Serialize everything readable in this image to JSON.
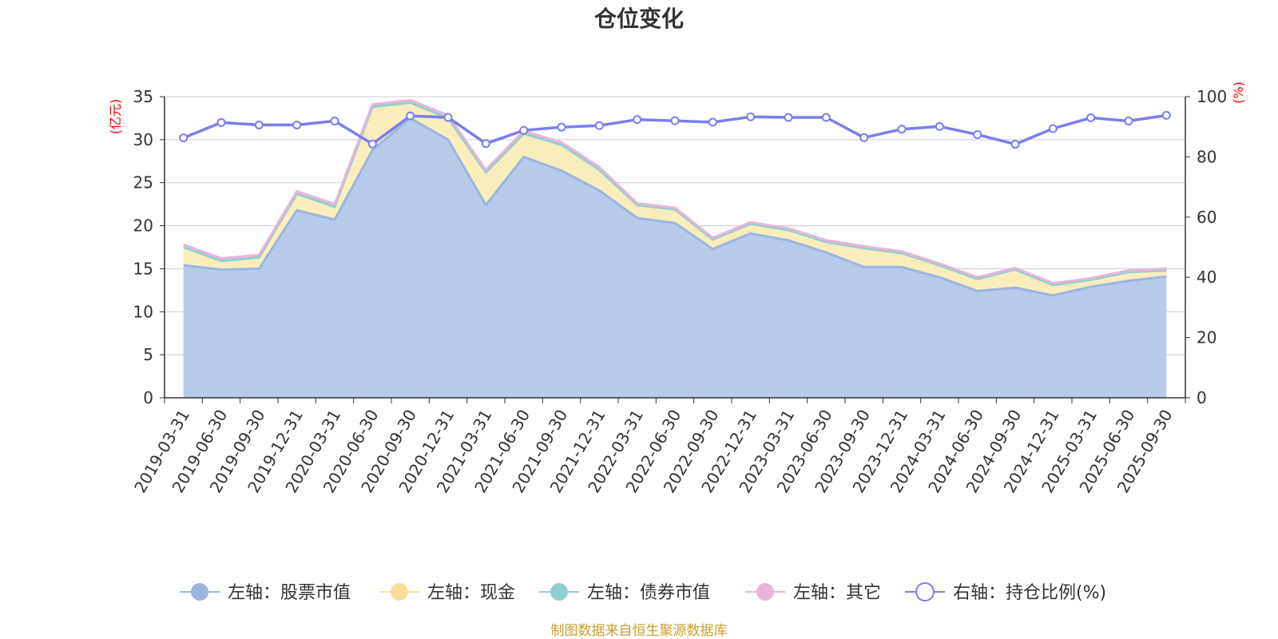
{
  "chart_data": {
    "type": "area",
    "title": "仓位变化",
    "left_axis": {
      "unit": "(亿元)",
      "min": 0,
      "max": 35,
      "ticks": [
        0,
        5,
        10,
        15,
        20,
        25,
        30,
        35
      ]
    },
    "right_axis": {
      "unit": "(%)",
      "min": 0,
      "max": 100,
      "ticks": [
        0,
        20,
        40,
        60,
        80,
        100
      ]
    },
    "categories": [
      "2019-03-31",
      "2019-06-30",
      "2019-09-30",
      "2019-12-31",
      "2020-03-31",
      "2020-06-30",
      "2020-09-30",
      "2020-12-31",
      "2021-03-31",
      "2021-06-30",
      "2021-09-30",
      "2021-12-31",
      "2022-03-31",
      "2022-06-30",
      "2022-09-30",
      "2022-12-31",
      "2023-03-31",
      "2023-06-30",
      "2023-09-30",
      "2023-12-31",
      "2024-03-31",
      "2024-06-30",
      "2024-09-30",
      "2024-12-31",
      "2025-03-31",
      "2025-06-30",
      "2025-09-30"
    ],
    "series": [
      {
        "name": "左轴：股票市值",
        "axis": "left",
        "stack": true,
        "color": "#9bb6e0",
        "fill": "#b8cbea",
        "values": [
          15.4,
          14.9,
          15.0,
          21.8,
          20.7,
          28.8,
          32.5,
          30.0,
          22.4,
          28.0,
          26.4,
          24.1,
          20.9,
          20.3,
          17.3,
          19.1,
          18.3,
          16.9,
          15.2,
          15.2,
          14.0,
          12.4,
          12.8,
          11.9,
          12.9,
          13.6,
          14.1
        ]
      },
      {
        "name": "左轴：现金",
        "axis": "left",
        "stack": true,
        "color": "#f5e09a",
        "fill": "#faeebd",
        "values": [
          2.1,
          1.0,
          1.3,
          1.9,
          1.5,
          5.0,
          1.8,
          2.5,
          3.8,
          2.7,
          3.0,
          2.4,
          1.5,
          1.6,
          1.1,
          1.1,
          1.2,
          1.2,
          2.2,
          1.6,
          1.4,
          1.4,
          2.1,
          1.2,
          0.8,
          1.0,
          0.7
        ]
      },
      {
        "name": "左轴：债券市值",
        "axis": "left",
        "stack": true,
        "color": "#8fd0d2",
        "fill": "#b7e2e3",
        "values": [
          0,
          0,
          0,
          0,
          0,
          0,
          0,
          0,
          0,
          0,
          0,
          0,
          0,
          0,
          0,
          0,
          0,
          0,
          0,
          0,
          0,
          0,
          0,
          0,
          0,
          0,
          0
        ]
      },
      {
        "name": "左轴：其它",
        "axis": "left",
        "stack": true,
        "color": "#e8b4d8",
        "fill": "#f0cde6",
        "values": [
          0.3,
          0.3,
          0.3,
          0.3,
          0.3,
          0.3,
          0.3,
          0.3,
          0.3,
          0.3,
          0.3,
          0.3,
          0.2,
          0.2,
          0.2,
          0.2,
          0.2,
          0.2,
          0.2,
          0.2,
          0.2,
          0.2,
          0.2,
          0.2,
          0.2,
          0.2,
          0.2
        ]
      },
      {
        "name": "右轴：持仓比例(%)",
        "axis": "right",
        "stack": false,
        "color": "#7b7ef0",
        "values": [
          86.3,
          91.4,
          90.6,
          90.6,
          91.9,
          84.3,
          93.6,
          93.1,
          84.4,
          88.8,
          89.9,
          90.4,
          92.4,
          92.0,
          91.5,
          93.3,
          93.1,
          93.1,
          86.4,
          89.2,
          90.1,
          87.4,
          84.2,
          89.4,
          93.0,
          91.9,
          93.8
        ]
      }
    ]
  },
  "source": "制图数据来自恒生聚源数据库"
}
